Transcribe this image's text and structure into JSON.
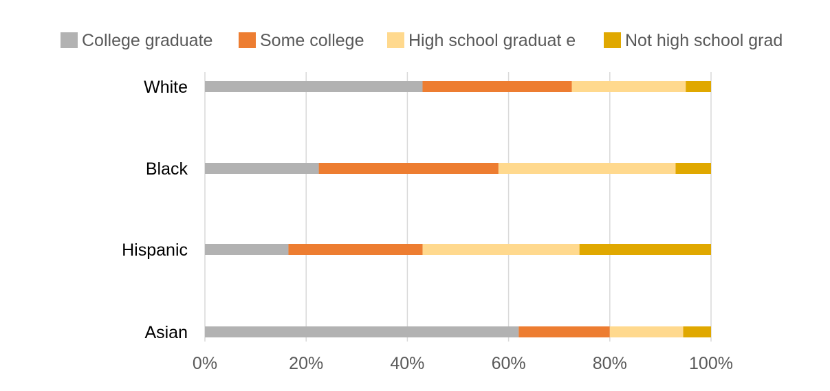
{
  "chart_data": {
    "type": "bar",
    "orientation": "horizontal",
    "stacked": "percent",
    "categories": [
      "White",
      "Black",
      "Hispanic",
      "Asian"
    ],
    "series": [
      {
        "name": "College graduate",
        "color": "#b2b2b2",
        "values": [
          43,
          22.5,
          16.5,
          62
        ]
      },
      {
        "name": "Some college",
        "color": "#ed7d31",
        "values": [
          29.5,
          35.5,
          26.5,
          18
        ]
      },
      {
        "name": "High school graduat e",
        "color": "#ffd98e",
        "values": [
          22.5,
          35,
          31,
          14.5
        ]
      },
      {
        "name": "Not high school grad",
        "color": "#e0a800",
        "values": [
          5,
          7,
          26,
          5.5
        ]
      }
    ],
    "xlim": [
      0,
      100
    ],
    "x_ticks": [
      "0%",
      "20%",
      "40%",
      "60%",
      "80%",
      "100%"
    ],
    "grid": true,
    "legend_position": "top",
    "title": "",
    "xlabel": "",
    "ylabel": ""
  }
}
